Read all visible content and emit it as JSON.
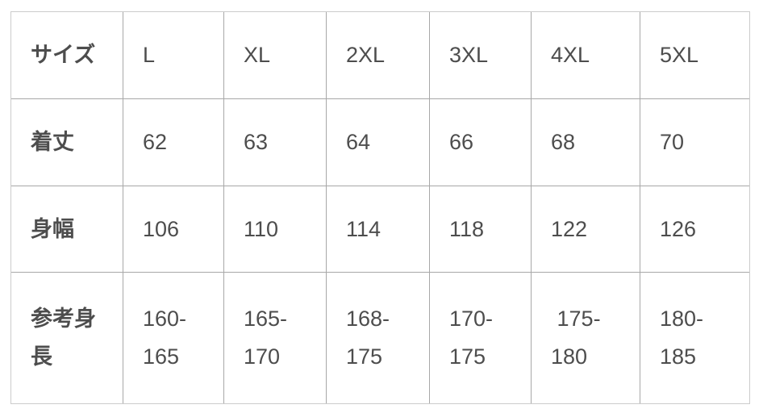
{
  "table": {
    "rows": [
      {
        "cells": [
          "サイズ",
          "L",
          "XL",
          "2XL",
          "3XL",
          "4XL",
          "5XL"
        ]
      },
      {
        "cells": [
          "着丈",
          "62",
          "63",
          "64",
          "66",
          "68",
          "70"
        ]
      },
      {
        "cells": [
          "身幅",
          "106",
          "110",
          "114",
          "118",
          "122",
          "126"
        ]
      },
      {
        "cells": [
          "参考身長",
          "160-165",
          "165-170",
          "168-175",
          "170-175",
          " 175-180",
          "180-185"
        ]
      }
    ]
  },
  "chart_data": {
    "type": "table",
    "title": "",
    "columns": [
      "サイズ",
      "L",
      "XL",
      "2XL",
      "3XL",
      "4XL",
      "5XL"
    ],
    "rows": [
      {
        "label": "着丈",
        "values": [
          62,
          63,
          64,
          66,
          68,
          70
        ]
      },
      {
        "label": "身幅",
        "values": [
          106,
          110,
          114,
          118,
          122,
          126
        ]
      },
      {
        "label": "参考身長",
        "values": [
          "160-165",
          "165-170",
          "168-175",
          "170-175",
          "175-180",
          "180-185"
        ]
      }
    ],
    "layout": {
      "grid": true,
      "header_column_bold": true
    }
  },
  "colors": {
    "background": "#ffffff",
    "outer_border": "#cccccc",
    "inner_border": "#a8a8a8",
    "text": "#4d4d4d"
  }
}
